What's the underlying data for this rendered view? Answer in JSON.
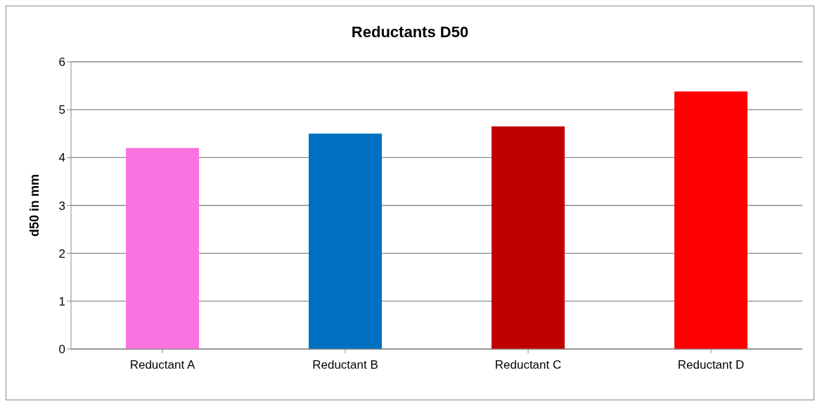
{
  "chart_data": {
    "type": "bar",
    "title": "Reductants D50",
    "ylabel": "d50 in mm",
    "categories": [
      "Reductant A",
      "Reductant B",
      "Reductant C",
      "Reductant D"
    ],
    "values": [
      4.2,
      4.5,
      4.65,
      5.38
    ],
    "colors": [
      "#f974e0",
      "#0070c0",
      "#c00000",
      "#ff0000"
    ],
    "ylim": [
      0,
      6
    ],
    "yticks": [
      0,
      1,
      2,
      3,
      4,
      5,
      6
    ],
    "grid": "y",
    "legend": false
  }
}
